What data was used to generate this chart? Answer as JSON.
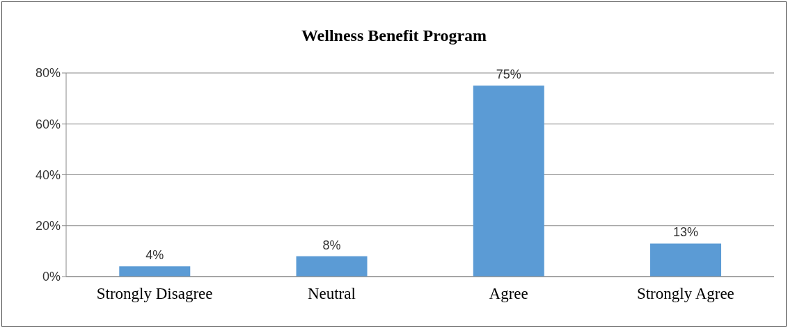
{
  "chart_data": {
    "type": "bar",
    "title": "Wellness Benefit Program",
    "categories": [
      "Strongly Disagree",
      "Neutral",
      "Agree",
      "Strongly Agree"
    ],
    "values": [
      4,
      8,
      75,
      13
    ],
    "value_labels": [
      "4%",
      "8%",
      "75%",
      "13%"
    ],
    "color": "#5b9bd5",
    "ylim": [
      0,
      80
    ],
    "yticks": [
      {
        "value": 0,
        "label": "0%"
      },
      {
        "value": 20,
        "label": "20%"
      },
      {
        "value": 40,
        "label": "40%"
      },
      {
        "value": 60,
        "label": "60%"
      },
      {
        "value": 80,
        "label": "80%"
      }
    ],
    "grid": "y",
    "legend": false
  }
}
